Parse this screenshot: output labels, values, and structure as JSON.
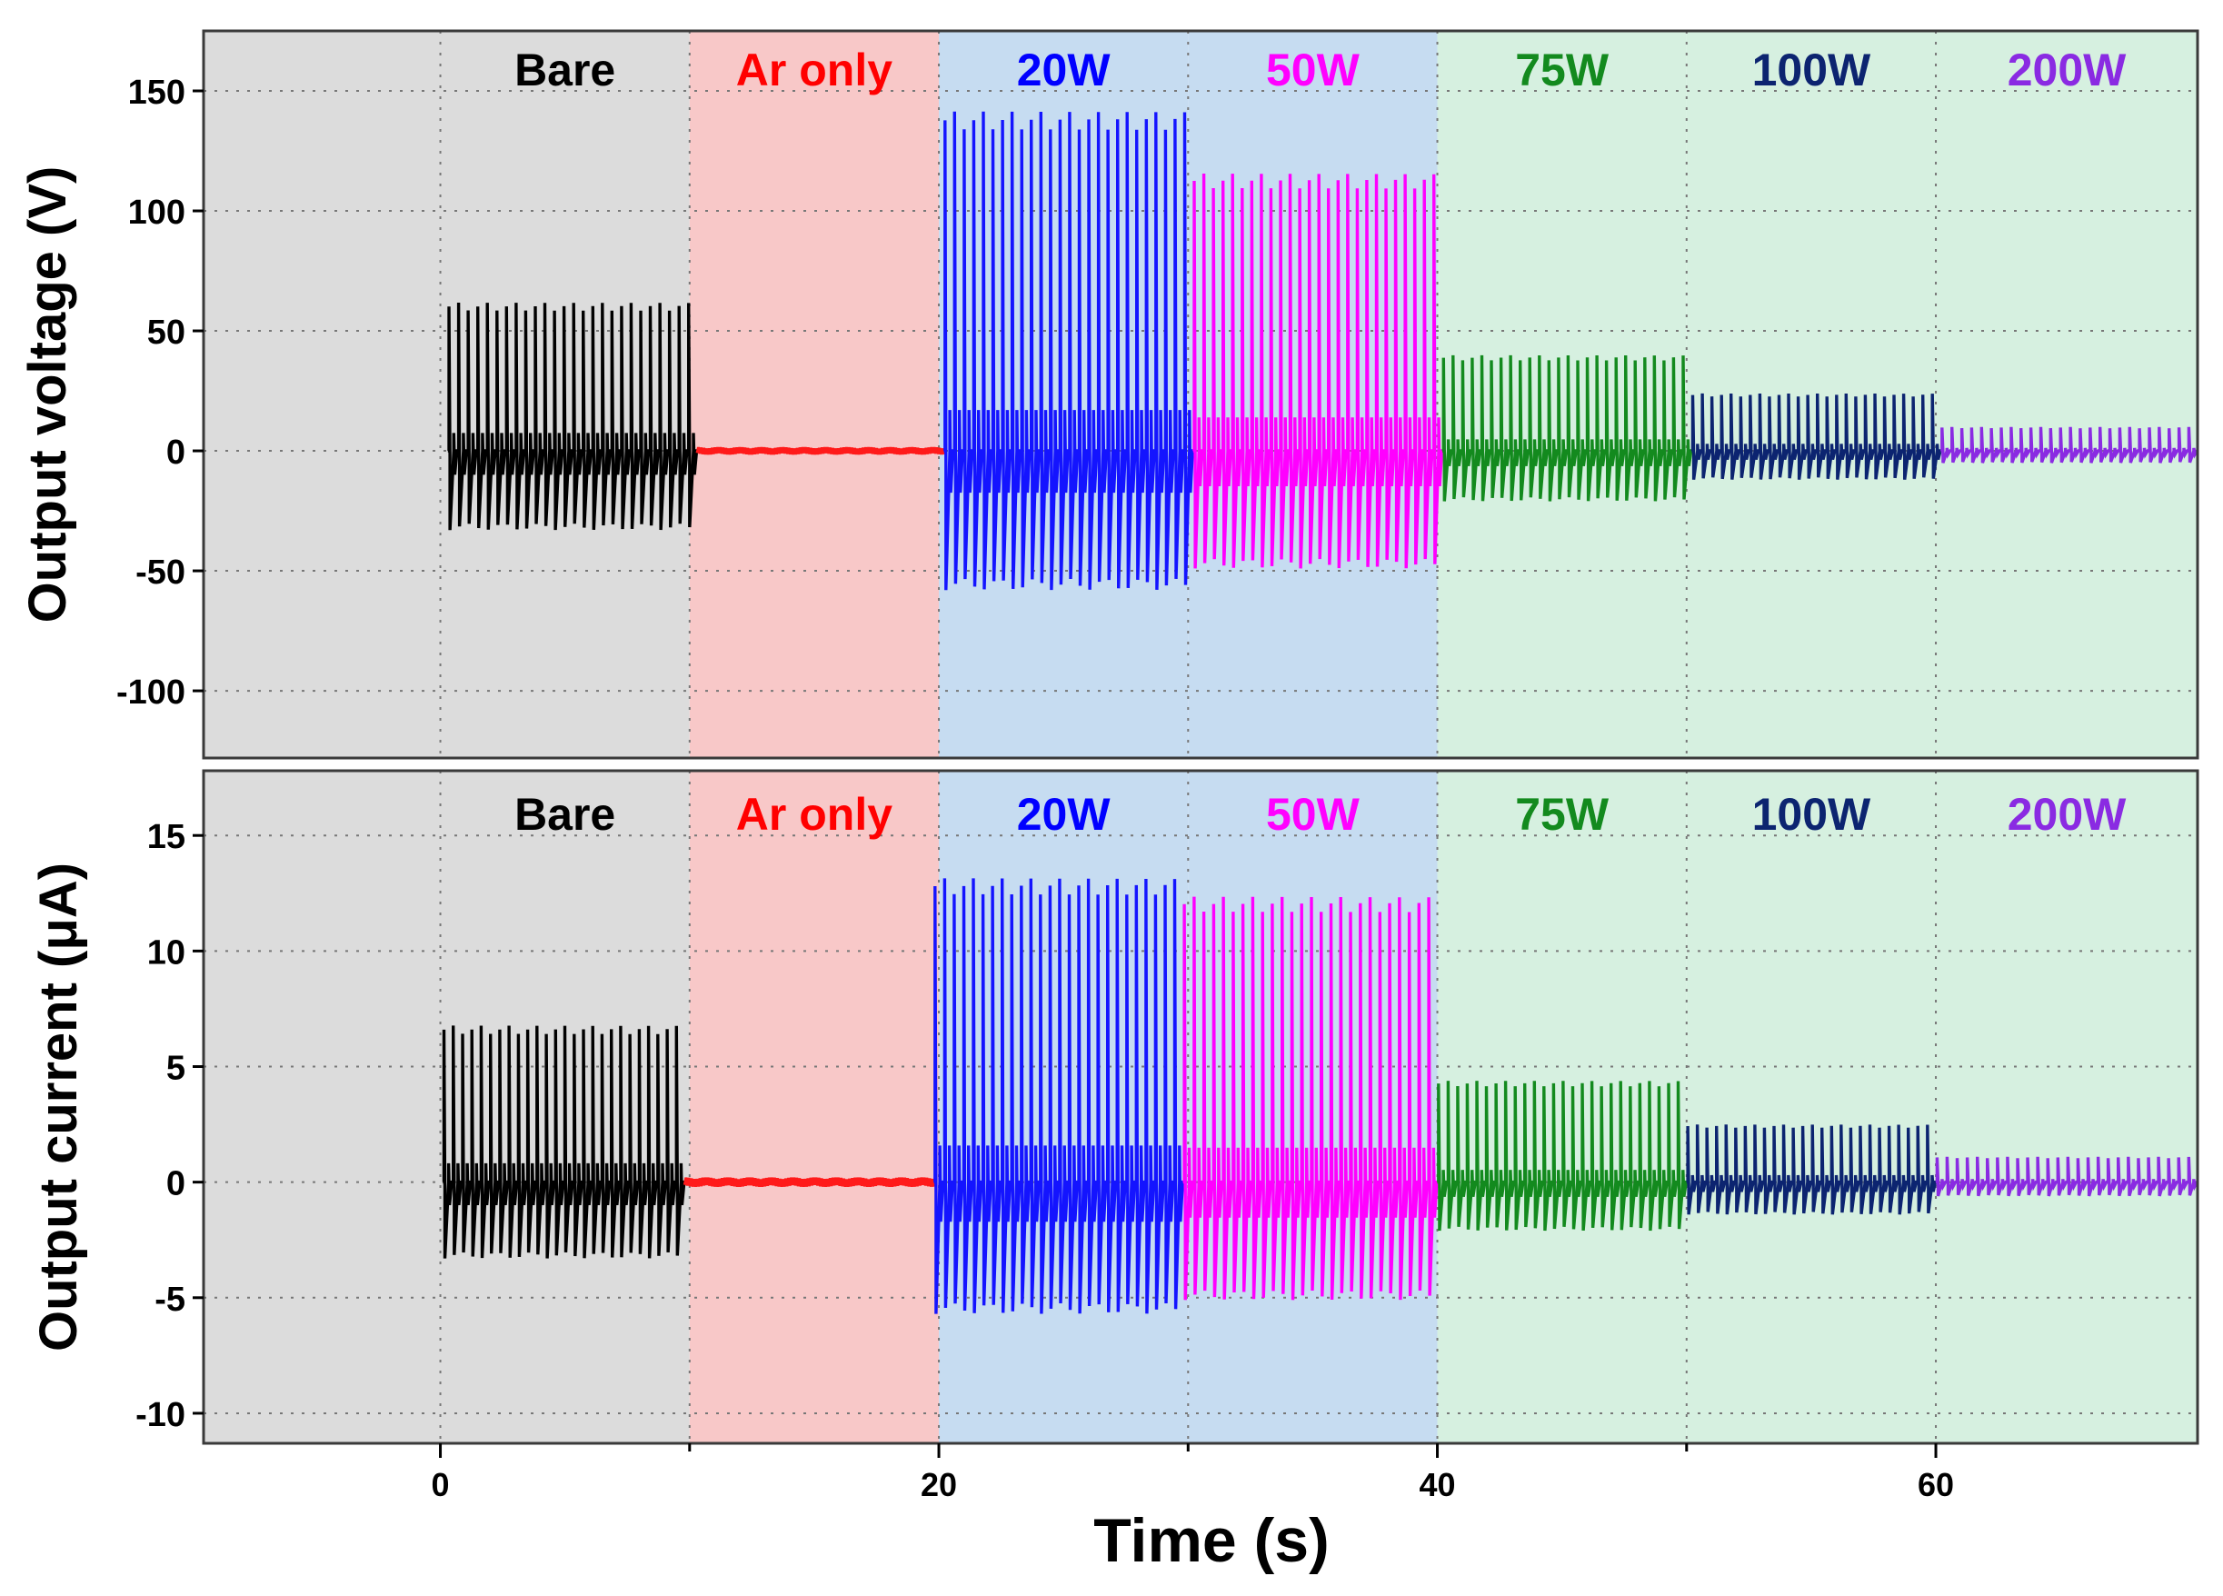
{
  "chart_data": {
    "type": "line",
    "x_axis": {
      "label": "Time (s)",
      "range": [
        -9.5,
        70.5
      ],
      "ticks": [
        0,
        20,
        40,
        60
      ],
      "tick_labels": [
        "0",
        "20",
        "40",
        "60"
      ],
      "minor_ticks": [
        10,
        30,
        50
      ]
    },
    "segments": [
      {
        "label": "Bare",
        "start": -9.5,
        "end": 10,
        "bg": "#dcdcdc",
        "color": "#000000",
        "label_color": "#000000"
      },
      {
        "label": "Ar only",
        "start": 10,
        "end": 20,
        "bg": "#f8c8c8",
        "color": "#ff1a1a",
        "label_color": "#ff0000"
      },
      {
        "label": "20W",
        "start": 20,
        "end": 30,
        "bg": "#c6dcf1",
        "color": "#1414ff",
        "label_color": "#0000ff"
      },
      {
        "label": "50W",
        "start": 30,
        "end": 40,
        "bg": "#c6dcf1",
        "color": "#ff00ff",
        "label_color": "#ff00ff"
      },
      {
        "label": "75W",
        "start": 40,
        "end": 50,
        "bg": "#d6f0e0",
        "color": "#138a1e",
        "label_color": "#138a1e"
      },
      {
        "label": "100W",
        "start": 50,
        "end": 60,
        "bg": "#d6f0e0",
        "color": "#0c2470",
        "label_color": "#0c2470"
      },
      {
        "label": "200W",
        "start": 60,
        "end": 70.5,
        "bg": "#d6f0e0",
        "color": "#8a2be2",
        "label_color": "#8a2be2"
      }
    ],
    "panels": [
      {
        "name": "voltage",
        "ylabel": "Output voltage (V)",
        "ylim": [
          -128,
          175
        ],
        "yticks": [
          150,
          100,
          50,
          0,
          -50,
          -100
        ],
        "ytick_labels": [
          "150",
          "100",
          "50",
          "0",
          "-50",
          "-100"
        ],
        "grid": true,
        "series": [
          {
            "name": "Bare",
            "t_start": 0.3,
            "t_end": 10.3,
            "peaks": 26,
            "pos": 62,
            "neg": -33
          },
          {
            "name": "Ar only",
            "t_start": 10.3,
            "t_end": 20.2,
            "peaks": 0,
            "pos": 1.5,
            "neg": -1.5
          },
          {
            "name": "20W",
            "t_start": 20.2,
            "t_end": 30.2,
            "peaks": 26,
            "pos": 142,
            "neg": -58
          },
          {
            "name": "50W",
            "t_start": 30.2,
            "t_end": 40.2,
            "peaks": 26,
            "pos": 116,
            "neg": -49
          },
          {
            "name": "75W",
            "t_start": 40.2,
            "t_end": 50.2,
            "peaks": 26,
            "pos": 40,
            "neg": -21
          },
          {
            "name": "100W",
            "t_start": 50.2,
            "t_end": 60.2,
            "peaks": 26,
            "pos": 24,
            "neg": -12
          },
          {
            "name": "200W",
            "t_start": 60.2,
            "t_end": 70.5,
            "peaks": 26,
            "pos": 10,
            "neg": -5
          }
        ]
      },
      {
        "name": "current",
        "ylabel": "Output current (μA)",
        "ylim": [
          -11.3,
          17.8
        ],
        "yticks": [
          15,
          10,
          5,
          0,
          -5,
          -10
        ],
        "ytick_labels": [
          "15",
          "10",
          "5",
          "0",
          "-5",
          "-10"
        ],
        "grid": true,
        "series": [
          {
            "name": "Bare",
            "t_start": 0.1,
            "t_end": 9.8,
            "peaks": 26,
            "pos": 6.8,
            "neg": -3.3
          },
          {
            "name": "Ar only",
            "t_start": 9.8,
            "t_end": 19.8,
            "peaks": 0,
            "pos": 0.2,
            "neg": -0.2
          },
          {
            "name": "20W",
            "t_start": 19.8,
            "t_end": 29.8,
            "peaks": 26,
            "pos": 13.2,
            "neg": -5.7
          },
          {
            "name": "50W",
            "t_start": 29.8,
            "t_end": 40,
            "peaks": 26,
            "pos": 12.4,
            "neg": -5.1
          },
          {
            "name": "75W",
            "t_start": 40,
            "t_end": 50,
            "peaks": 26,
            "pos": 4.4,
            "neg": -2.1
          },
          {
            "name": "100W",
            "t_start": 50,
            "t_end": 60,
            "peaks": 26,
            "pos": 2.5,
            "neg": -1.4
          },
          {
            "name": "200W",
            "t_start": 60,
            "t_end": 70.5,
            "peaks": 26,
            "pos": 1.1,
            "neg": -0.6
          }
        ]
      }
    ]
  }
}
